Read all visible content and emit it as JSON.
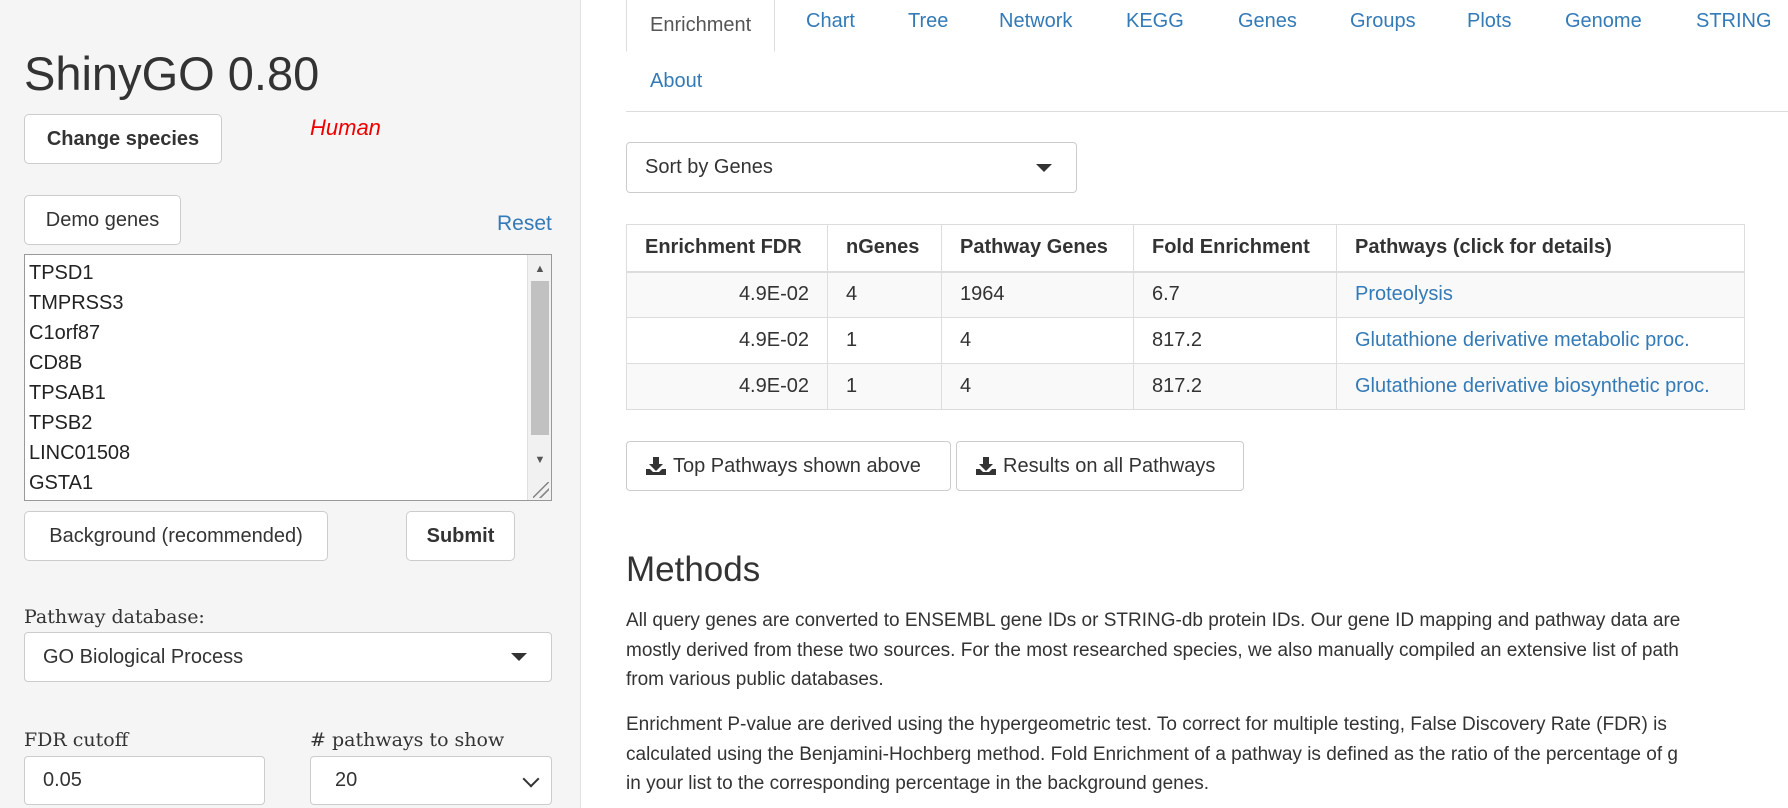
{
  "app": {
    "title": "ShinyGO 0.80",
    "change_species_label": "Change species",
    "species": "Human",
    "demo_genes_label": "Demo genes",
    "reset_label": "Reset",
    "genes": [
      "TPSD1",
      "TMPRSS3",
      "C1orf87",
      "CD8B",
      "TPSAB1",
      "TPSB2",
      "LINC01508",
      "GSTA1"
    ],
    "background_label": "Background (recommended)",
    "submit_label": "Submit",
    "pathway_db_label": "Pathway database:",
    "pathway_db_value": "GO Biological Process",
    "fdr_label": "FDR cutoff",
    "fdr_value": "0.05",
    "npathways_label": "# pathways to show",
    "npathways_value": "20"
  },
  "tabs": [
    {
      "label": "Enrichment",
      "active": true
    },
    {
      "label": "Chart"
    },
    {
      "label": "Tree"
    },
    {
      "label": "Network"
    },
    {
      "label": "KEGG"
    },
    {
      "label": "Genes"
    },
    {
      "label": "Groups"
    },
    {
      "label": "Plots"
    },
    {
      "label": "Genome"
    },
    {
      "label": "STRING"
    },
    {
      "label": "About"
    }
  ],
  "sort": {
    "value": "Sort by Genes"
  },
  "table": {
    "headers": [
      "Enrichment FDR",
      "nGenes",
      "Pathway Genes",
      "Fold Enrichment",
      "Pathways (click for details)"
    ],
    "rows": [
      [
        "4.9E-02",
        "4",
        "1964",
        "6.7",
        "Proteolysis"
      ],
      [
        "4.9E-02",
        "1",
        "4",
        "817.2",
        "Glutathione derivative metabolic proc."
      ],
      [
        "4.9E-02",
        "1",
        "4",
        "817.2",
        "Glutathione derivative biosynthetic proc."
      ]
    ]
  },
  "downloads": {
    "top_label": "Top Pathways shown above",
    "all_label": "Results on all Pathways"
  },
  "methods": {
    "title": "Methods",
    "p1": "All query genes are converted to ENSEMBL gene IDs or STRING-db protein IDs. Our gene ID mapping and pathway data are\nmostly derived from these two sources. For the most researched species, we also manually compiled an extensive list of path\nfrom various public databases.",
    "p2": "Enrichment P-value are derived using the hypergeometric test. To correct for multiple testing, False Discovery Rate (FDR) is\ncalculated using the Benjamini-Hochberg method. Fold Enrichment of a pathway is defined as the ratio of the percentage of g\nin your list to the corresponding percentage in the background genes."
  }
}
